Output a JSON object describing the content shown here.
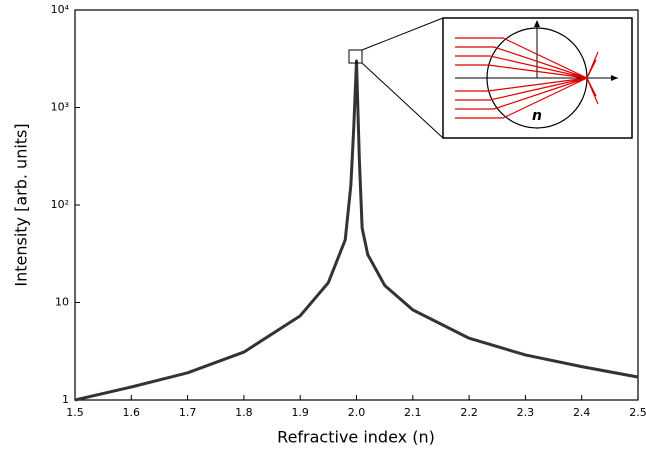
{
  "chart_data": {
    "type": "line",
    "xlabel": "Refractive index (n)",
    "ylabel": "Intensity [arb. units]",
    "inset_label": "n",
    "x": [
      1.5,
      1.6,
      1.7,
      1.8,
      1.9,
      1.95,
      1.98,
      1.99,
      1.995,
      2.0,
      2.005,
      2.01,
      2.02,
      2.05,
      2.1,
      2.2,
      2.3,
      2.4,
      2.5
    ],
    "series": [
      {
        "color": "#333333",
        "values": [
          1,
          1.36,
          1.9,
          3.1,
          7.3,
          16,
          44,
          160,
          600,
          3000,
          300,
          58,
          31,
          15,
          8.4,
          4.3,
          2.9,
          2.2,
          1.72
        ]
      }
    ],
    "xlim": [
      1.5,
      2.5
    ],
    "ylim": [
      1,
      10000
    ],
    "log_y": true,
    "xticks": [
      1.5,
      1.6,
      1.7,
      1.8,
      1.9,
      {
        "value": 2,
        "label": "2.0"
      },
      2.1,
      2.2,
      2.3,
      2.4,
      2.5
    ],
    "yticks": [
      1,
      10,
      {
        "value": 100,
        "label": "10²"
      },
      {
        "value": 1000,
        "label": "10³"
      },
      {
        "value": 10000,
        "label": "10⁴"
      }
    ]
  }
}
